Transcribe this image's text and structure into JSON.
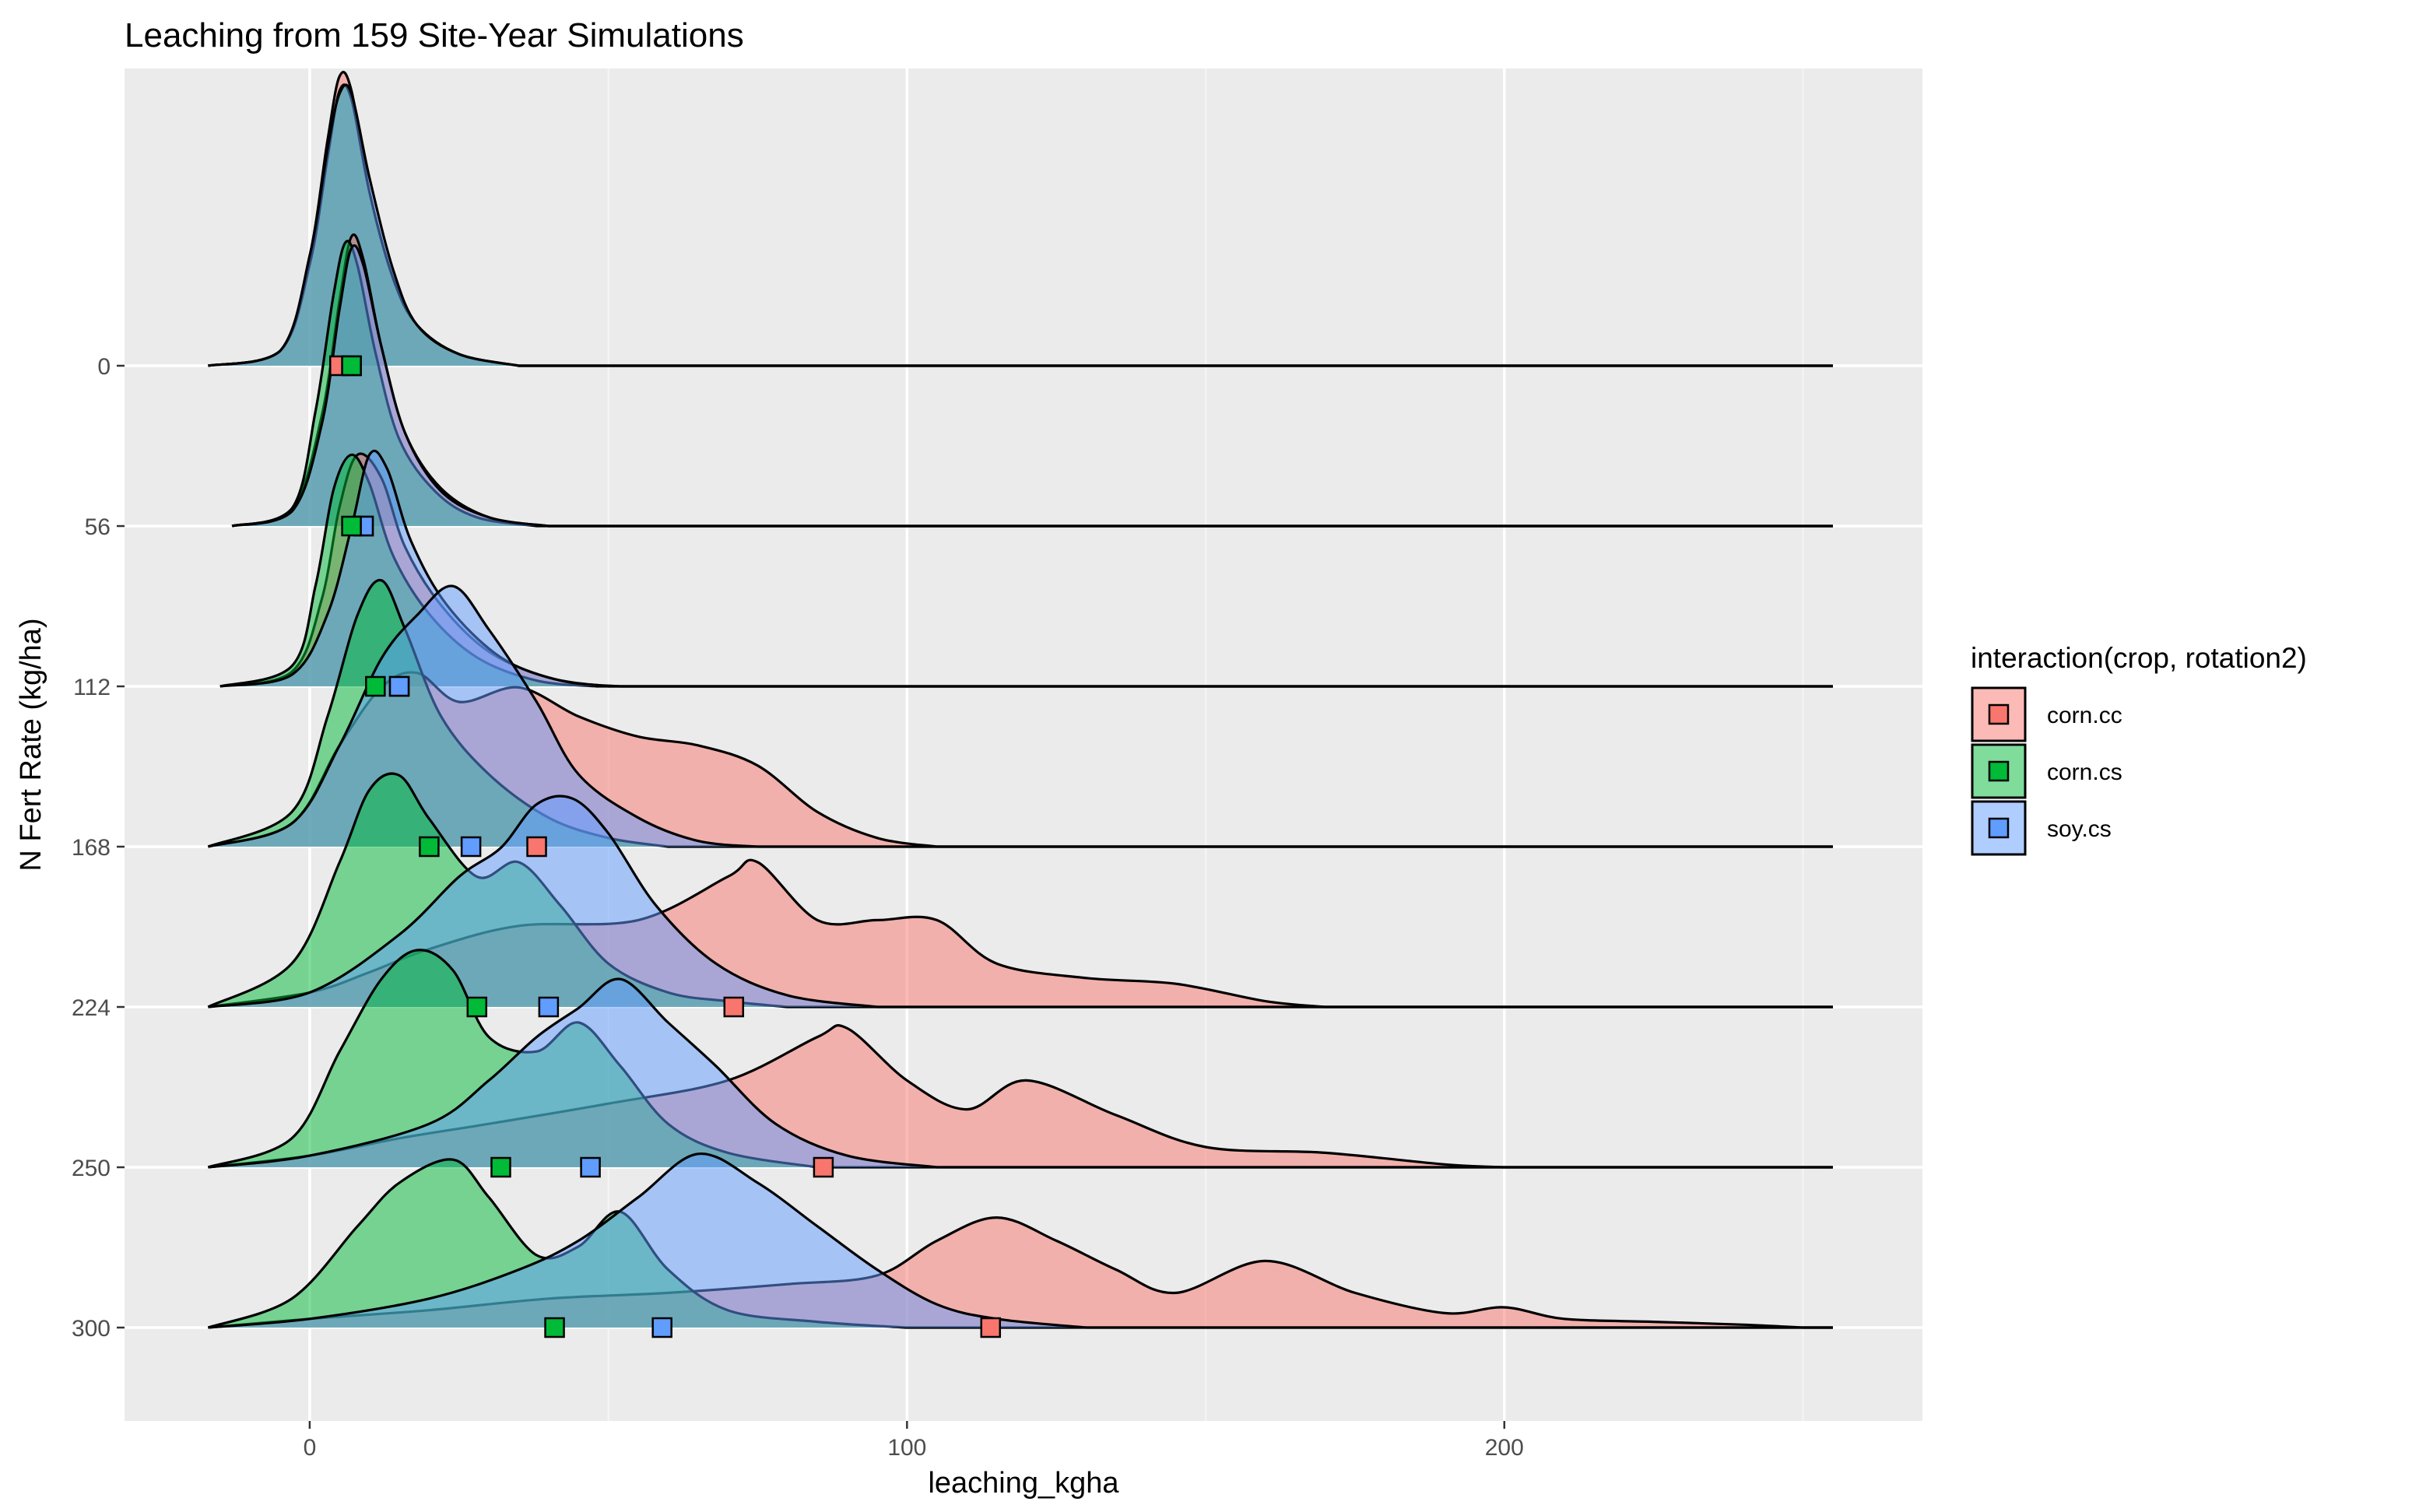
{
  "chart_data": {
    "type": "ridgeline",
    "title": "Leaching from 159 Site-Year Simulations",
    "xlabel": "leaching_kgha",
    "ylabel": "N Fert Rate (kg/ha)",
    "xlim": [
      -31,
      270
    ],
    "x_ticks": [
      0,
      100,
      200
    ],
    "x_tick_labels": [
      "0",
      "100",
      "200"
    ],
    "y_categories": [
      "0",
      "56",
      "112",
      "168",
      "224",
      "250",
      "300"
    ],
    "grid": true,
    "legend": {
      "title": "interaction(crop, rotation2)",
      "position": "right",
      "entries": [
        "corn.cc",
        "corn.cs",
        "soy.cs"
      ]
    },
    "series_colors": {
      "corn.cc": "#F8766D",
      "corn.cs": "#00BA38",
      "soy.cs": "#619CFF"
    },
    "series": [
      {
        "name": "corn.cc",
        "ridges": [
          {
            "rate": "0",
            "x": [
              -17,
              -5,
              0,
              3,
              5,
              7,
              10,
              14,
              18,
              25,
              35
            ],
            "y": [
              0,
              0.05,
              0.38,
              0.78,
              1.0,
              0.95,
              0.6,
              0.3,
              0.14,
              0.04,
              0
            ]
          },
          {
            "rate": "56",
            "x": [
              -13,
              -3,
              2,
              5,
              7,
              9,
              12,
              16,
              22,
              30,
              40
            ],
            "y": [
              0,
              0.06,
              0.38,
              0.78,
              1.0,
              0.92,
              0.62,
              0.32,
              0.13,
              0.03,
              0
            ]
          },
          {
            "rate": "112",
            "x": [
              -15,
              -3,
              2,
              5,
              8,
              12,
              16,
              22,
              30,
              40,
              50
            ],
            "y": [
              0,
              0.05,
              0.3,
              0.62,
              0.8,
              0.72,
              0.48,
              0.28,
              0.12,
              0.03,
              0
            ]
          },
          {
            "rate": "168",
            "x": [
              -17,
              -3,
              5,
              12,
              18,
              25,
              35,
              45,
              55,
              65,
              75,
              85,
              95,
              105
            ],
            "y": [
              0,
              0.08,
              0.35,
              0.55,
              0.6,
              0.5,
              0.55,
              0.45,
              0.38,
              0.35,
              0.28,
              0.12,
              0.03,
              0
            ]
          },
          {
            "rate": "224",
            "x": [
              -17,
              0,
              10,
              20,
              35,
              55,
              70,
              75,
              85,
              95,
              105,
              115,
              130,
              145,
              160,
              170
            ],
            "y": [
              0,
              0.05,
              0.12,
              0.2,
              0.28,
              0.3,
              0.45,
              0.5,
              0.3,
              0.3,
              0.3,
              0.15,
              0.1,
              0.08,
              0.02,
              0
            ]
          },
          {
            "rate": "250",
            "x": [
              -17,
              0,
              15,
              30,
              50,
              70,
              85,
              90,
              100,
              110,
              120,
              135,
              150,
              170,
              190,
              200
            ],
            "y": [
              0,
              0.04,
              0.1,
              0.15,
              0.22,
              0.3,
              0.45,
              0.48,
              0.3,
              0.2,
              0.3,
              0.18,
              0.07,
              0.05,
              0.01,
              0
            ]
          },
          {
            "rate": "300",
            "x": [
              -17,
              0,
              20,
              40,
              60,
              80,
              95,
              105,
              115,
              125,
              135,
              145,
              160,
              175,
              190,
              200,
              210,
              225,
              240,
              250
            ],
            "y": [
              0,
              0.03,
              0.06,
              0.1,
              0.12,
              0.15,
              0.18,
              0.3,
              0.38,
              0.3,
              0.2,
              0.12,
              0.23,
              0.12,
              0.05,
              0.07,
              0.03,
              0.02,
              0.01,
              0
            ]
          }
        ]
      },
      {
        "name": "corn.cs",
        "ridges": [
          {
            "rate": "0",
            "x": [
              -17,
              -5,
              0,
              3,
              5,
              7,
              10,
              14,
              18,
              25,
              35
            ],
            "y": [
              0,
              0.05,
              0.35,
              0.72,
              0.95,
              0.92,
              0.6,
              0.3,
              0.14,
              0.04,
              0
            ]
          },
          {
            "rate": "56",
            "x": [
              -13,
              -3,
              1,
              4,
              6,
              8,
              11,
              15,
              21,
              28,
              38
            ],
            "y": [
              0,
              0.06,
              0.4,
              0.8,
              0.98,
              0.9,
              0.6,
              0.3,
              0.12,
              0.03,
              0
            ]
          },
          {
            "rate": "112",
            "x": [
              -15,
              -3,
              1,
              4,
              7,
              10,
              14,
              20,
              28,
              38,
              48
            ],
            "y": [
              0,
              0.07,
              0.35,
              0.68,
              0.8,
              0.7,
              0.45,
              0.25,
              0.1,
              0.02,
              0
            ]
          },
          {
            "rate": "168",
            "x": [
              -17,
              -3,
              3,
              8,
              12,
              16,
              22,
              30,
              40,
              50,
              60
            ],
            "y": [
              0,
              0.12,
              0.45,
              0.8,
              0.92,
              0.75,
              0.45,
              0.25,
              0.1,
              0.03,
              0
            ]
          },
          {
            "rate": "224",
            "x": [
              -17,
              -3,
              5,
              10,
              15,
              20,
              28,
              35,
              42,
              50,
              60,
              70,
              80
            ],
            "y": [
              0,
              0.15,
              0.5,
              0.75,
              0.8,
              0.65,
              0.45,
              0.5,
              0.35,
              0.15,
              0.05,
              0.02,
              0
            ]
          },
          {
            "rate": "250",
            "x": [
              -17,
              -3,
              5,
              12,
              18,
              24,
              30,
              38,
              45,
              52,
              60,
              70,
              85
            ],
            "y": [
              0,
              0.1,
              0.4,
              0.65,
              0.75,
              0.68,
              0.45,
              0.4,
              0.5,
              0.35,
              0.15,
              0.05,
              0
            ]
          },
          {
            "rate": "300",
            "x": [
              -17,
              -3,
              8,
              15,
              24,
              30,
              38,
              45,
              52,
              60,
              70,
              85,
              100
            ],
            "y": [
              0,
              0.1,
              0.35,
              0.5,
              0.58,
              0.45,
              0.25,
              0.28,
              0.4,
              0.2,
              0.06,
              0.02,
              0
            ]
          }
        ]
      },
      {
        "name": "soy.cs",
        "ridges": [
          {
            "rate": "0",
            "x": [
              -17,
              -5,
              0,
              3,
              5,
              7,
              10,
              14,
              18,
              25,
              35
            ],
            "y": [
              0,
              0.05,
              0.38,
              0.75,
              0.94,
              0.94,
              0.65,
              0.33,
              0.14,
              0.04,
              0
            ]
          },
          {
            "rate": "56",
            "x": [
              -13,
              -3,
              2,
              5,
              7,
              9,
              12,
              16,
              22,
              30,
              40
            ],
            "y": [
              0,
              0.05,
              0.35,
              0.75,
              0.96,
              0.9,
              0.62,
              0.32,
              0.12,
              0.03,
              0
            ]
          },
          {
            "rate": "112",
            "x": [
              -15,
              -3,
              3,
              7,
              10,
              13,
              17,
              23,
              32,
              42,
              52
            ],
            "y": [
              0,
              0.04,
              0.25,
              0.55,
              0.8,
              0.75,
              0.5,
              0.28,
              0.1,
              0.02,
              0
            ]
          },
          {
            "rate": "168",
            "x": [
              -17,
              -3,
              5,
              12,
              18,
              24,
              30,
              38,
              45,
              55,
              65,
              75
            ],
            "y": [
              0,
              0.08,
              0.35,
              0.65,
              0.8,
              0.9,
              0.75,
              0.5,
              0.25,
              0.1,
              0.02,
              0
            ]
          },
          {
            "rate": "224",
            "x": [
              -17,
              0,
              15,
              25,
              32,
              38,
              44,
              50,
              58,
              68,
              80,
              95
            ],
            "y": [
              0,
              0.05,
              0.25,
              0.45,
              0.55,
              0.7,
              0.72,
              0.6,
              0.35,
              0.15,
              0.04,
              0
            ]
          },
          {
            "rate": "250",
            "x": [
              -17,
              0,
              20,
              30,
              38,
              45,
              52,
              60,
              68,
              78,
              90,
              105
            ],
            "y": [
              0,
              0.04,
              0.15,
              0.3,
              0.45,
              0.55,
              0.65,
              0.5,
              0.35,
              0.15,
              0.04,
              0
            ]
          },
          {
            "rate": "300",
            "x": [
              -17,
              0,
              20,
              35,
              45,
              55,
              65,
              75,
              85,
              95,
              105,
              115,
              130
            ],
            "y": [
              0,
              0.03,
              0.1,
              0.2,
              0.3,
              0.45,
              0.6,
              0.5,
              0.35,
              0.2,
              0.08,
              0.03,
              0
            ]
          }
        ]
      }
    ],
    "means": [
      {
        "rate": "0",
        "corn.cc": 5,
        "corn.cs": 7,
        "soy.cs": 7
      },
      {
        "rate": "56",
        "corn.cc": 9,
        "corn.cs": 7,
        "soy.cs": 9
      },
      {
        "rate": "112",
        "corn.cc": 15,
        "corn.cs": 11,
        "soy.cs": 15
      },
      {
        "rate": "168",
        "corn.cc": 38,
        "corn.cs": 20,
        "soy.cs": 27
      },
      {
        "rate": "224",
        "corn.cc": 71,
        "corn.cs": 28,
        "soy.cs": 40
      },
      {
        "rate": "250",
        "corn.cc": 86,
        "corn.cs": 32,
        "soy.cs": 47
      },
      {
        "rate": "300",
        "corn.cc": 114,
        "corn.cs": 41,
        "soy.cs": 59
      }
    ]
  }
}
